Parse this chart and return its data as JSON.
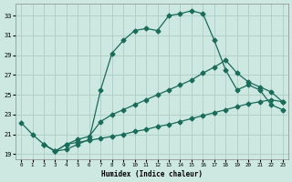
{
  "xlabel": "Humidex (Indice chaleur)",
  "xlim": [
    -0.5,
    23.5
  ],
  "ylim": [
    18.5,
    34.2
  ],
  "yticks": [
    19,
    21,
    23,
    25,
    27,
    29,
    31,
    33
  ],
  "xticks": [
    0,
    1,
    2,
    3,
    4,
    5,
    6,
    7,
    8,
    9,
    10,
    11,
    12,
    13,
    14,
    15,
    16,
    17,
    18,
    19,
    20,
    21,
    22,
    23
  ],
  "bg_color": "#cce8e0",
  "grid_color": "#b0d0c8",
  "line_color": "#1a6b5a",
  "line1_x": [
    0,
    1,
    2,
    3,
    4,
    5,
    6,
    7,
    8,
    9,
    10,
    11,
    12,
    13,
    14,
    15,
    16,
    17,
    18,
    19,
    20,
    21,
    22,
    23
  ],
  "line1_y": [
    22.2,
    21.0,
    20.0,
    19.3,
    19.5,
    20.0,
    20.5,
    25.5,
    29.2,
    30.5,
    31.5,
    31.7,
    31.5,
    33.0,
    33.2,
    33.5,
    33.2,
    30.5,
    27.5,
    25.5,
    26.0,
    25.5,
    24.0,
    23.5
  ],
  "line2_x": [
    2,
    3,
    4,
    5,
    6,
    7,
    8,
    9,
    10,
    11,
    12,
    13,
    14,
    15,
    16,
    17,
    18,
    19,
    20,
    21,
    22,
    23
  ],
  "line2_y": [
    20.0,
    19.3,
    20.0,
    20.5,
    20.8,
    22.3,
    23.0,
    23.5,
    24.0,
    24.5,
    25.0,
    25.5,
    26.0,
    26.5,
    27.2,
    27.8,
    28.5,
    27.2,
    26.3,
    25.8,
    25.3,
    24.3
  ],
  "line3_x": [
    2,
    3,
    4,
    5,
    6,
    7,
    8,
    9,
    10,
    11,
    12,
    13,
    14,
    15,
    16,
    17,
    18,
    19,
    20,
    21,
    22,
    23
  ],
  "line3_y": [
    20.0,
    19.3,
    20.0,
    20.2,
    20.4,
    20.6,
    20.8,
    21.0,
    21.3,
    21.5,
    21.8,
    22.0,
    22.3,
    22.6,
    22.9,
    23.2,
    23.5,
    23.8,
    24.1,
    24.3,
    24.5,
    24.3
  ]
}
